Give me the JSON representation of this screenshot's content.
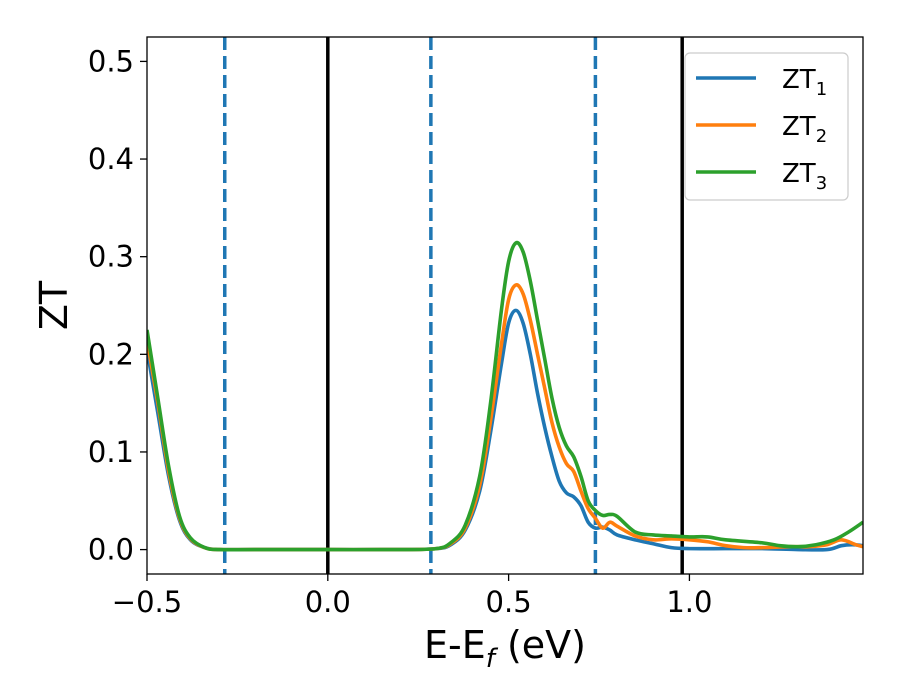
{
  "chart_data": {
    "type": "line",
    "title": "",
    "xlabel": {
      "main": "E-E",
      "sub": "f",
      "tail": " (eV)"
    },
    "ylabel": "ZT",
    "xlim": [
      -0.5,
      1.48
    ],
    "ylim": [
      -0.025,
      0.525
    ],
    "xticks": [
      {
        "value": -0.5,
        "label": "−0.5"
      },
      {
        "value": 0.0,
        "label": "0.0"
      },
      {
        "value": 0.5,
        "label": "0.5"
      },
      {
        "value": 1.0,
        "label": "1.0"
      }
    ],
    "yticks": [
      {
        "value": 0.0,
        "label": "0.0"
      },
      {
        "value": 0.1,
        "label": "0.1"
      },
      {
        "value": 0.2,
        "label": "0.2"
      },
      {
        "value": 0.3,
        "label": "0.3"
      },
      {
        "value": 0.4,
        "label": "0.4"
      },
      {
        "value": 0.5,
        "label": "0.5"
      }
    ],
    "grid": false,
    "legend_position": "top-right",
    "vlines": [
      {
        "x": -0.285,
        "style": "dashed",
        "color": "#1f77b4"
      },
      {
        "x": 0.0,
        "style": "solid",
        "color": "#000000"
      },
      {
        "x": 0.285,
        "style": "dashed",
        "color": "#1f77b4"
      },
      {
        "x": 0.74,
        "style": "dashed",
        "color": "#1f77b4"
      },
      {
        "x": 0.98,
        "style": "solid",
        "color": "#000000"
      }
    ],
    "series": [
      {
        "name": "ZT",
        "name_sub": "1",
        "color": "#1f77b4",
        "points": [
          [
            -0.5,
            0.205
          ],
          [
            -0.47,
            0.14
          ],
          [
            -0.44,
            0.075
          ],
          [
            -0.41,
            0.03
          ],
          [
            -0.38,
            0.01
          ],
          [
            -0.34,
            0.002
          ],
          [
            -0.3,
            0.0
          ],
          [
            -0.2,
            0.0
          ],
          [
            0.0,
            0.0
          ],
          [
            0.2,
            0.0
          ],
          [
            0.3,
            0.001
          ],
          [
            0.34,
            0.005
          ],
          [
            0.38,
            0.02
          ],
          [
            0.42,
            0.06
          ],
          [
            0.45,
            0.12
          ],
          [
            0.48,
            0.19
          ],
          [
            0.5,
            0.232
          ],
          [
            0.52,
            0.245
          ],
          [
            0.54,
            0.232
          ],
          [
            0.56,
            0.2
          ],
          [
            0.58,
            0.16
          ],
          [
            0.6,
            0.125
          ],
          [
            0.62,
            0.095
          ],
          [
            0.64,
            0.07
          ],
          [
            0.66,
            0.058
          ],
          [
            0.68,
            0.054
          ],
          [
            0.7,
            0.045
          ],
          [
            0.72,
            0.028
          ],
          [
            0.74,
            0.022
          ],
          [
            0.76,
            0.023
          ],
          [
            0.78,
            0.02
          ],
          [
            0.8,
            0.015
          ],
          [
            0.85,
            0.01
          ],
          [
            0.9,
            0.006
          ],
          [
            0.95,
            0.002
          ],
          [
            1.0,
            0.001
          ],
          [
            1.1,
            0.001
          ],
          [
            1.2,
            0.001
          ],
          [
            1.3,
            0.0
          ],
          [
            1.38,
            0.0
          ],
          [
            1.42,
            0.004
          ],
          [
            1.45,
            0.005
          ],
          [
            1.48,
            0.004
          ]
        ]
      },
      {
        "name": "ZT",
        "name_sub": "2",
        "color": "#ff7f0e",
        "points": [
          [
            -0.5,
            0.215
          ],
          [
            -0.47,
            0.15
          ],
          [
            -0.44,
            0.08
          ],
          [
            -0.41,
            0.032
          ],
          [
            -0.38,
            0.011
          ],
          [
            -0.34,
            0.002
          ],
          [
            -0.3,
            0.0
          ],
          [
            -0.2,
            0.0
          ],
          [
            0.0,
            0.0
          ],
          [
            0.2,
            0.0
          ],
          [
            0.3,
            0.001
          ],
          [
            0.34,
            0.006
          ],
          [
            0.38,
            0.022
          ],
          [
            0.42,
            0.066
          ],
          [
            0.45,
            0.132
          ],
          [
            0.48,
            0.21
          ],
          [
            0.5,
            0.256
          ],
          [
            0.52,
            0.271
          ],
          [
            0.54,
            0.262
          ],
          [
            0.56,
            0.235
          ],
          [
            0.58,
            0.2
          ],
          [
            0.6,
            0.165
          ],
          [
            0.62,
            0.13
          ],
          [
            0.64,
            0.105
          ],
          [
            0.66,
            0.088
          ],
          [
            0.68,
            0.08
          ],
          [
            0.7,
            0.06
          ],
          [
            0.72,
            0.042
          ],
          [
            0.74,
            0.032
          ],
          [
            0.76,
            0.022
          ],
          [
            0.78,
            0.028
          ],
          [
            0.8,
            0.024
          ],
          [
            0.85,
            0.014
          ],
          [
            0.9,
            0.01
          ],
          [
            0.95,
            0.011
          ],
          [
            1.0,
            0.01
          ],
          [
            1.05,
            0.008
          ],
          [
            1.1,
            0.004
          ],
          [
            1.15,
            0.002
          ],
          [
            1.2,
            0.002
          ],
          [
            1.28,
            0.003
          ],
          [
            1.33,
            0.003
          ],
          [
            1.38,
            0.005
          ],
          [
            1.42,
            0.01
          ],
          [
            1.46,
            0.005
          ],
          [
            1.48,
            0.003
          ]
        ]
      },
      {
        "name": "ZT",
        "name_sub": "3",
        "color": "#2ca02c",
        "points": [
          [
            -0.5,
            0.225
          ],
          [
            -0.47,
            0.155
          ],
          [
            -0.44,
            0.085
          ],
          [
            -0.41,
            0.034
          ],
          [
            -0.38,
            0.012
          ],
          [
            -0.34,
            0.002
          ],
          [
            -0.3,
            0.0
          ],
          [
            -0.2,
            0.0
          ],
          [
            0.0,
            0.0
          ],
          [
            0.2,
            0.0
          ],
          [
            0.3,
            0.001
          ],
          [
            0.34,
            0.007
          ],
          [
            0.38,
            0.025
          ],
          [
            0.42,
            0.075
          ],
          [
            0.45,
            0.15
          ],
          [
            0.48,
            0.245
          ],
          [
            0.5,
            0.295
          ],
          [
            0.52,
            0.314
          ],
          [
            0.54,
            0.305
          ],
          [
            0.56,
            0.275
          ],
          [
            0.58,
            0.235
          ],
          [
            0.6,
            0.195
          ],
          [
            0.62,
            0.155
          ],
          [
            0.64,
            0.125
          ],
          [
            0.66,
            0.106
          ],
          [
            0.68,
            0.095
          ],
          [
            0.7,
            0.075
          ],
          [
            0.72,
            0.05
          ],
          [
            0.74,
            0.04
          ],
          [
            0.76,
            0.035
          ],
          [
            0.78,
            0.036
          ],
          [
            0.8,
            0.034
          ],
          [
            0.85,
            0.018
          ],
          [
            0.9,
            0.015
          ],
          [
            0.95,
            0.014
          ],
          [
            1.0,
            0.013
          ],
          [
            1.05,
            0.013
          ],
          [
            1.1,
            0.01
          ],
          [
            1.2,
            0.007
          ],
          [
            1.25,
            0.004
          ],
          [
            1.3,
            0.003
          ],
          [
            1.35,
            0.005
          ],
          [
            1.4,
            0.01
          ],
          [
            1.44,
            0.018
          ],
          [
            1.48,
            0.028
          ]
        ]
      }
    ]
  }
}
